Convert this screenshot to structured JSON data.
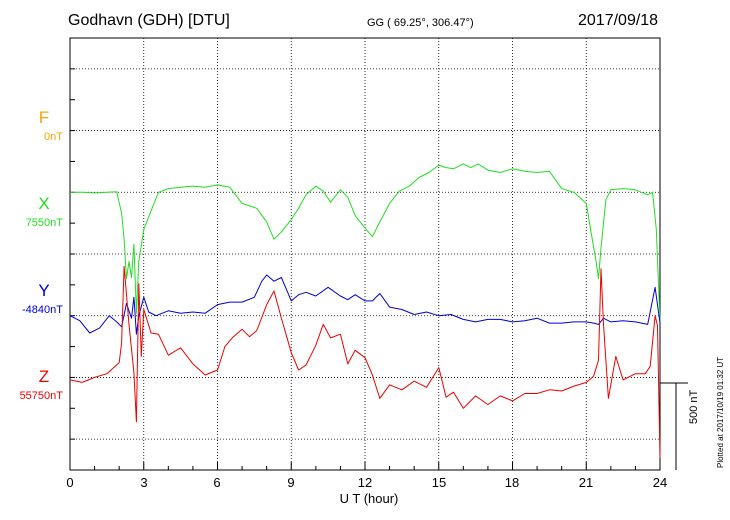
{
  "header": {
    "station": "Godhavn (GDH)  [DTU]",
    "coords": "GG ( 69.25°, 306.47°)",
    "date": "2017/09/18"
  },
  "channels": [
    {
      "name": "F",
      "baseline": "0nT",
      "color": "#f5a300"
    },
    {
      "name": "X",
      "baseline": "7550nT",
      "color": "#22dd22"
    },
    {
      "name": "Y",
      "baseline": "-4840nT",
      "color": "#0000dd"
    },
    {
      "name": "Z",
      "baseline": "55750nT",
      "color": "#ee0000"
    }
  ],
  "x_axis": {
    "label": "U T (hour)",
    "ticks": [
      "0",
      "3",
      "6",
      "9",
      "12",
      "15",
      "18",
      "21",
      "24"
    ]
  },
  "scale": {
    "label": "500 nT"
  },
  "plotted": "Plotted at 2017/10/19 01:32 UT",
  "chart_data": {
    "type": "line",
    "xlabel": "U T (hour)",
    "ylabel": "",
    "xlim": [
      0,
      24
    ],
    "ylim_offset_nT": [
      -750,
      2750
    ],
    "grid": true,
    "scale_bar_nT": 500,
    "baselines": {
      "F": 0,
      "X": 7550,
      "Y": -4840,
      "Z": 55750
    },
    "series": [
      {
        "name": "X",
        "color": "#22dd22",
        "baseline_offset_nT": 1500,
        "x": [
          0,
          0.5,
          1,
          1.5,
          1.9,
          2.1,
          2.2,
          2.3,
          2.4,
          2.5,
          2.6,
          2.7,
          2.8,
          3,
          3.3,
          3.6,
          4,
          4.5,
          5,
          5.5,
          6,
          6.5,
          7,
          7.3,
          7.6,
          8,
          8.3,
          8.6,
          9,
          9.3,
          9.6,
          10,
          10.3,
          10.6,
          11,
          11.3,
          11.6,
          12,
          12.3,
          12.6,
          13,
          13.4,
          13.8,
          14.2,
          14.6,
          15,
          15.3,
          15.6,
          16,
          16.3,
          16.6,
          17,
          17.5,
          18,
          18.5,
          19,
          19.5,
          20,
          20.5,
          21,
          21.2,
          21.4,
          21.5,
          21.6,
          21.8,
          22,
          22.5,
          23,
          23.5,
          23.7,
          23.85,
          24
        ],
        "y": [
          0,
          0,
          -5,
          0,
          5,
          -170,
          -380,
          -700,
          -560,
          -690,
          -420,
          -980,
          -560,
          -300,
          -150,
          0,
          30,
          40,
          50,
          40,
          60,
          40,
          -90,
          -110,
          -130,
          -240,
          -380,
          -320,
          -220,
          -130,
          -20,
          50,
          10,
          -80,
          20,
          -40,
          -190,
          -290,
          -360,
          -240,
          -90,
          10,
          50,
          120,
          160,
          220,
          200,
          190,
          230,
          200,
          230,
          180,
          160,
          190,
          170,
          160,
          170,
          30,
          0,
          -90,
          -330,
          -560,
          -700,
          -450,
          -60,
          20,
          30,
          20,
          -20,
          0,
          -300,
          -1050
        ]
      },
      {
        "name": "Y",
        "color": "#0000dd",
        "baseline_offset_nT": 500,
        "x": [
          0,
          0.4,
          0.8,
          1.2,
          1.6,
          1.9,
          2.1,
          2.3,
          2.5,
          2.6,
          2.7,
          2.8,
          3,
          3.2,
          3.5,
          4,
          4.5,
          5,
          5.5,
          6,
          6.5,
          7,
          7.5,
          7.8,
          8,
          8.3,
          8.6,
          9,
          9.3,
          9.6,
          10,
          10.5,
          11,
          11.3,
          11.6,
          12,
          12.3,
          12.6,
          13,
          13.5,
          14,
          14.5,
          15,
          15.5,
          16,
          16.5,
          17,
          17.5,
          18,
          18.5,
          19,
          19.5,
          20,
          20.5,
          21,
          21.3,
          21.5,
          21.7,
          22,
          22.5,
          23,
          23.5,
          23.8,
          24
        ],
        "y": [
          0,
          -40,
          -140,
          -100,
          0,
          -50,
          -90,
          100,
          -20,
          150,
          -150,
          0,
          150,
          30,
          0,
          40,
          20,
          30,
          20,
          90,
          110,
          110,
          150,
          280,
          330,
          280,
          310,
          120,
          170,
          190,
          160,
          230,
          160,
          130,
          170,
          120,
          120,
          180,
          70,
          50,
          10,
          30,
          0,
          10,
          -30,
          -50,
          -30,
          -30,
          -50,
          -40,
          -20,
          -60,
          -60,
          -50,
          -50,
          -60,
          -70,
          -20,
          -50,
          -40,
          -50,
          -70,
          230,
          -60
        ]
      },
      {
        "name": "Z",
        "color": "#ee0000",
        "baseline_offset_nT": 0,
        "x": [
          0,
          0.5,
          1,
          1.5,
          2,
          2.1,
          2.2,
          2.4,
          2.6,
          2.7,
          2.8,
          2.9,
          3,
          3.3,
          3.6,
          4,
          4.5,
          5,
          5.5,
          6,
          6.3,
          6.6,
          7,
          7.3,
          7.6,
          8,
          8.3,
          8.6,
          9,
          9.3,
          9.6,
          10,
          10.3,
          10.6,
          11,
          11.3,
          11.6,
          12,
          12.3,
          12.6,
          13,
          13.5,
          14,
          14.5,
          15,
          15.3,
          15.6,
          16,
          16.5,
          17,
          17.5,
          18,
          18.5,
          19,
          19.5,
          20,
          20.5,
          21,
          21.3,
          21.5,
          21.6,
          21.7,
          21.9,
          22.2,
          22.5,
          23,
          23.4,
          23.6,
          23.8,
          23.9,
          24
        ],
        "y": [
          -20,
          -40,
          0,
          30,
          120,
          280,
          900,
          430,
          40,
          -360,
          760,
          170,
          550,
          360,
          350,
          180,
          240,
          110,
          20,
          60,
          250,
          320,
          390,
          330,
          380,
          590,
          700,
          480,
          200,
          60,
          100,
          260,
          430,
          320,
          350,
          110,
          220,
          160,
          20,
          -170,
          -60,
          -100,
          -30,
          -80,
          80,
          -160,
          -120,
          -250,
          -150,
          -220,
          -150,
          -190,
          -130,
          -130,
          -100,
          -110,
          -70,
          -40,
          10,
          140,
          880,
          430,
          -170,
          170,
          -20,
          30,
          30,
          90,
          500,
          420,
          -650
        ]
      }
    ]
  }
}
